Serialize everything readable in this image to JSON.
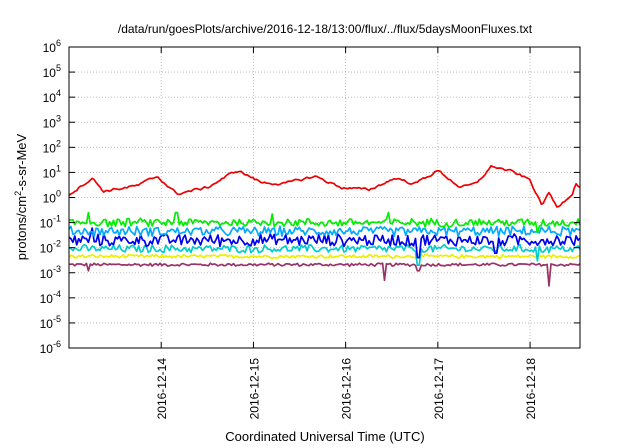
{
  "chart_data": {
    "type": "line",
    "title": "/data/run/goesPlots/archive/2016-12-18/13:00/flux/../flux/5daysMoonFluxes.txt",
    "xlabel": "Coordinated Universal Time (UTC)",
    "ylabel": {
      "base": "protons/cm",
      "exponent": "2",
      "rest": "-s-sr-MeV"
    },
    "y_scale": "log",
    "ylim": [
      1e-06,
      1000000.0
    ],
    "xlim": [
      "2016-12-13 00:00",
      "2016-12-18 13:00"
    ],
    "x_ticks": [
      "2016-12-14",
      "2016-12-15",
      "2016-12-16",
      "2016-12-17",
      "2016-12-18"
    ],
    "y_ticks": [
      {
        "base": "10",
        "exp": "-6",
        "value": 1e-06
      },
      {
        "base": "10",
        "exp": "-5",
        "value": 1e-05
      },
      {
        "base": "10",
        "exp": "-4",
        "value": 0.0001
      },
      {
        "base": "10",
        "exp": "-3",
        "value": 0.001
      },
      {
        "base": "10",
        "exp": "-2",
        "value": 0.01
      },
      {
        "base": "10",
        "exp": "-1",
        "value": 0.1
      },
      {
        "base": "10",
        "exp": "0",
        "value": 1
      },
      {
        "base": "10",
        "exp": "1",
        "value": 10
      },
      {
        "base": "10",
        "exp": "2",
        "value": 100
      },
      {
        "base": "10",
        "exp": "3",
        "value": 1000
      },
      {
        "base": "10",
        "exp": "4",
        "value": 10000
      },
      {
        "base": "10",
        "exp": "5",
        "value": 100000
      },
      {
        "base": "10",
        "exp": "6",
        "value": 1000000
      }
    ],
    "grid": true,
    "legend": "none",
    "series": [
      {
        "color": "#ee0000",
        "kind": "smooth",
        "anchors": [
          [
            "2016-12-13 00:00",
            1.3
          ],
          [
            "2016-12-13 06:00",
            6
          ],
          [
            "2016-12-13 09:00",
            1.8
          ],
          [
            "2016-12-13 18:00",
            3
          ],
          [
            "2016-12-13 23:00",
            7
          ],
          [
            "2016-12-14 04:00",
            1.4
          ],
          [
            "2016-12-14 12:00",
            2.5
          ],
          [
            "2016-12-14 17:00",
            7
          ],
          [
            "2016-12-14 20:00",
            12
          ],
          [
            "2016-12-15 02:00",
            4
          ],
          [
            "2016-12-15 08:00",
            3.5
          ],
          [
            "2016-12-15 16:00",
            7
          ],
          [
            "2016-12-15 23:00",
            2.5
          ],
          [
            "2016-12-16 06:00",
            2
          ],
          [
            "2016-12-16 13:00",
            6
          ],
          [
            "2016-12-16 18:00",
            3.5
          ],
          [
            "2016-12-17 00:00",
            12
          ],
          [
            "2016-12-17 06:00",
            2.5
          ],
          [
            "2016-12-17 10:00",
            3.5
          ],
          [
            "2016-12-17 14:00",
            18
          ],
          [
            "2016-12-17 19:00",
            11
          ],
          [
            "2016-12-18 00:00",
            5
          ],
          [
            "2016-12-18 03:00",
            0.5
          ],
          [
            "2016-12-18 05:00",
            1.5
          ],
          [
            "2016-12-18 07:00",
            0.4
          ],
          [
            "2016-12-18 11:00",
            1.5
          ],
          [
            "2016-12-18 12:00",
            4
          ],
          [
            "2016-12-18 13:00",
            2.5
          ]
        ],
        "noise": 0.09,
        "spikes": [],
        "values": []
      },
      {
        "color": "#00ee00",
        "kind": "noisy",
        "level": 0.1,
        "noise": 0.19,
        "spikes": [
          [
            "2016-12-13 05:00",
            0.25
          ],
          [
            "2016-12-14 04:00",
            0.25
          ],
          [
            "2016-12-15 05:00",
            0.22
          ],
          [
            "2016-12-16 11:00",
            0.25
          ],
          [
            "2016-12-18 02:00",
            0.04
          ]
        ]
      },
      {
        "color": "#00aaff",
        "kind": "noisy",
        "level": 0.045,
        "noise": 0.22,
        "spikes": []
      },
      {
        "color": "#0000ee",
        "kind": "noisy",
        "level": 0.02,
        "noise": 0.28,
        "spikes": [
          [
            "2016-12-13 06:00",
            0.06
          ],
          [
            "2016-12-16 19:00",
            0.004
          ],
          [
            "2016-12-17 15:00",
            0.006
          ]
        ]
      },
      {
        "color": "#00cccc",
        "kind": "noisy",
        "level": 0.009,
        "noise": 0.18,
        "spikes": [
          [
            "2016-12-16 19:00",
            0.002
          ],
          [
            "2016-12-18 02:00",
            0.003
          ]
        ]
      },
      {
        "color": "#eeee00",
        "kind": "noisy",
        "level": 0.0045,
        "noise": 0.08,
        "spikes": []
      },
      {
        "color": "#993366",
        "kind": "noisy",
        "level": 0.0021,
        "noise": 0.07,
        "spikes": [
          [
            "2016-12-13 05:00",
            0.0012
          ],
          [
            "2016-12-16 10:00",
            0.0005
          ],
          [
            "2016-12-16 19:00",
            0.0012
          ],
          [
            "2016-12-18 05:00",
            0.0003
          ]
        ]
      }
    ]
  }
}
